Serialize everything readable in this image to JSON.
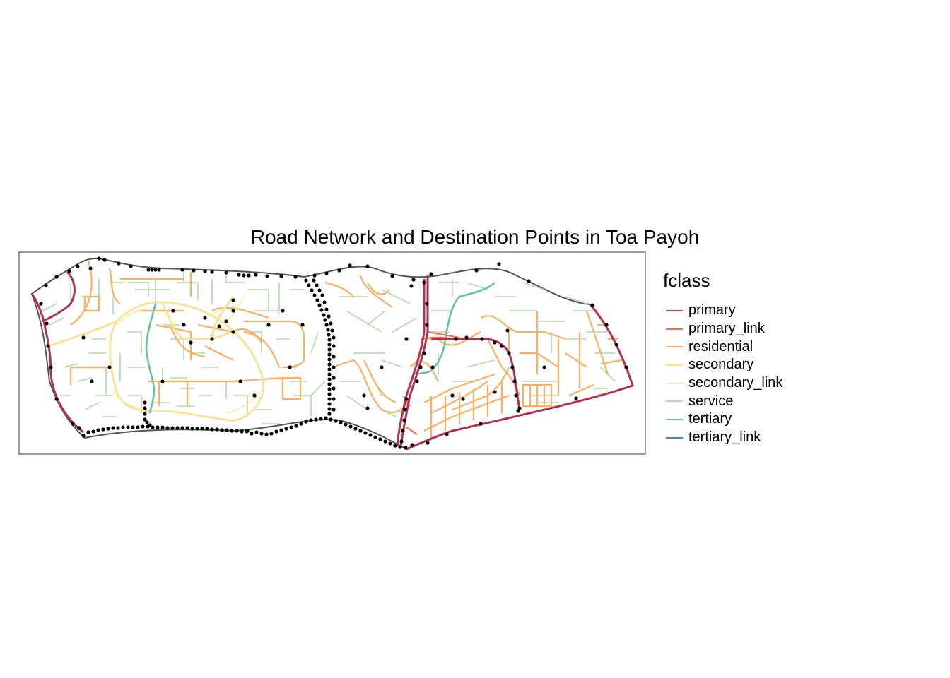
{
  "title": "Road Network and Destination Points in Toa Payoh",
  "legend": {
    "title": "fclass",
    "items": [
      {
        "label": "primary",
        "color": "#d53e4f"
      },
      {
        "label": "primary_link",
        "color": "#f46d43"
      },
      {
        "label": "residential",
        "color": "#fdae61"
      },
      {
        "label": "secondary",
        "color": "#fee08b"
      },
      {
        "label": "secondary_link",
        "color": "#ffffbf"
      },
      {
        "label": "service",
        "color": "#abdda4"
      },
      {
        "label": "tertiary",
        "color": "#66c2a5"
      },
      {
        "label": "tertiary_link",
        "color": "#3288bd"
      }
    ]
  },
  "map": {
    "boundary_color": "#555555",
    "point_color": "#000000",
    "frame_color": "#333333"
  }
}
